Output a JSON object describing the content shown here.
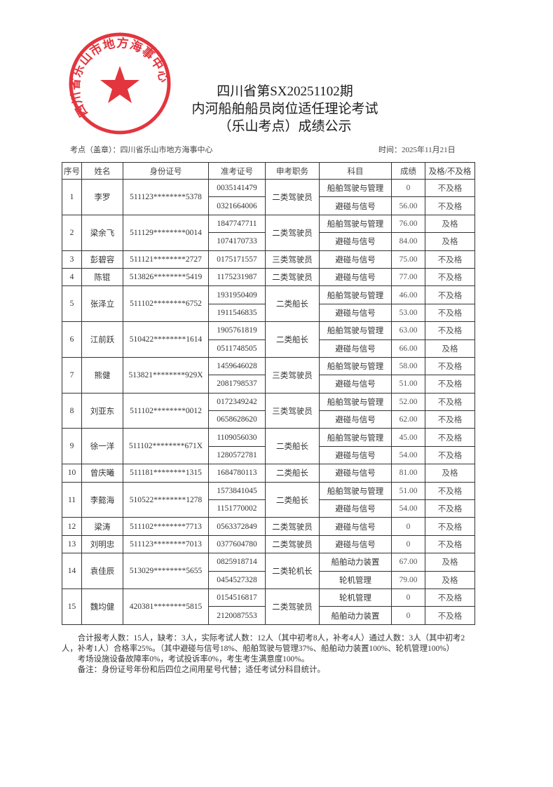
{
  "document": {
    "title_line1": "四川省第SX20251102期",
    "title_line2": "内河船舶船员岗位适任理论考试",
    "title_line3": "（乐山考点）成绩公示",
    "exam_site": "考点（盖章）：四川省乐山市地方海事中心",
    "date": "时间：2025年11月21日"
  },
  "stamp": {
    "text": "四川省乐山市地方海事中心",
    "color": "#e0202a",
    "icon": "star-icon"
  },
  "table": {
    "headers": [
      "序号",
      "姓名",
      "身份证号",
      "准考证号",
      "申考职务",
      "科目",
      "成绩",
      "及格/不及格"
    ],
    "rows": [
      {
        "no": "1",
        "name": "李罗",
        "id": "511123********5378",
        "position": "二类驾驶员",
        "exams": [
          {
            "ticket": "0035141479",
            "subject": "船舶驾驶与管理",
            "score": "0",
            "result": "不及格"
          },
          {
            "ticket": "0321664006",
            "subject": "避碰与信号",
            "score": "56.00",
            "result": "不及格"
          }
        ]
      },
      {
        "no": "2",
        "name": "梁余飞",
        "id": "511129********0014",
        "position": "二类驾驶员",
        "exams": [
          {
            "ticket": "1847747711",
            "subject": "船舶驾驶与管理",
            "score": "76.00",
            "result": "及格"
          },
          {
            "ticket": "1074170733",
            "subject": "避碰与信号",
            "score": "84.00",
            "result": "及格"
          }
        ]
      },
      {
        "no": "3",
        "name": "彭碧容",
        "id": "511121********2727",
        "position": "三类驾驶员",
        "exams": [
          {
            "ticket": "0175171557",
            "subject": "避碰与信号",
            "score": "75.00",
            "result": "不及格"
          }
        ]
      },
      {
        "no": "4",
        "name": "陈锟",
        "id": "513826********5419",
        "position": "二类驾驶员",
        "exams": [
          {
            "ticket": "1175231987",
            "subject": "避碰与信号",
            "score": "77.00",
            "result": "不及格"
          }
        ]
      },
      {
        "no": "5",
        "name": "张泽立",
        "id": "511102********6752",
        "position": "二类船长",
        "exams": [
          {
            "ticket": "1931950409",
            "subject": "船舶驾驶与管理",
            "score": "46.00",
            "result": "不及格"
          },
          {
            "ticket": "1911546835",
            "subject": "避碰与信号",
            "score": "53.00",
            "result": "不及格"
          }
        ]
      },
      {
        "no": "6",
        "name": "江前跃",
        "id": "510422********1614",
        "position": "二类船长",
        "exams": [
          {
            "ticket": "1905761819",
            "subject": "船舶驾驶与管理",
            "score": "63.00",
            "result": "不及格"
          },
          {
            "ticket": "0511748505",
            "subject": "避碰与信号",
            "score": "66.00",
            "result": "及格"
          }
        ]
      },
      {
        "no": "7",
        "name": "熊健",
        "id": "513821********929X",
        "position": "三类驾驶员",
        "exams": [
          {
            "ticket": "1459646028",
            "subject": "船舶驾驶与管理",
            "score": "58.00",
            "result": "不及格"
          },
          {
            "ticket": "2081798537",
            "subject": "避碰与信号",
            "score": "51.00",
            "result": "不及格"
          }
        ]
      },
      {
        "no": "8",
        "name": "刘亚东",
        "id": "511102********0012",
        "position": "三类驾驶员",
        "exams": [
          {
            "ticket": "0172349242",
            "subject": "船舶驾驶与管理",
            "score": "52.00",
            "result": "不及格"
          },
          {
            "ticket": "0658628620",
            "subject": "避碰与信号",
            "score": "62.00",
            "result": "不及格"
          }
        ]
      },
      {
        "no": "9",
        "name": "徐一洋",
        "id": "511102********671X",
        "position": "二类船长",
        "exams": [
          {
            "ticket": "1109056030",
            "subject": "船舶驾驶与管理",
            "score": "45.00",
            "result": "不及格"
          },
          {
            "ticket": "1280572781",
            "subject": "避碰与信号",
            "score": "54.00",
            "result": "不及格"
          }
        ]
      },
      {
        "no": "10",
        "name": "曾庆曦",
        "id": "511181********1315",
        "position": "二类船长",
        "exams": [
          {
            "ticket": "1684780113",
            "subject": "避碰与信号",
            "score": "81.00",
            "result": "及格"
          }
        ]
      },
      {
        "no": "11",
        "name": "李懿海",
        "id": "510522********1278",
        "position": "二类船长",
        "exams": [
          {
            "ticket": "1573841045",
            "subject": "船舶驾驶与管理",
            "score": "51.00",
            "result": "不及格"
          },
          {
            "ticket": "1151770002",
            "subject": "避碰与信号",
            "score": "54.00",
            "result": "不及格"
          }
        ]
      },
      {
        "no": "12",
        "name": "梁涛",
        "id": "511102********7713",
        "position": "二类驾驶员",
        "exams": [
          {
            "ticket": "0563372849",
            "subject": "避碰与信号",
            "score": "0",
            "result": "不及格"
          }
        ]
      },
      {
        "no": "13",
        "name": "刘明忠",
        "id": "511123********7013",
        "position": "二类驾驶员",
        "exams": [
          {
            "ticket": "0377604780",
            "subject": "避碰与信号",
            "score": "0",
            "result": "不及格"
          }
        ]
      },
      {
        "no": "14",
        "name": "袁佳辰",
        "id": "513029********5655",
        "position": "二类轮机长",
        "exams": [
          {
            "ticket": "0825918714",
            "subject": "船舶动力装置",
            "score": "67.00",
            "result": "及格"
          },
          {
            "ticket": "0454527328",
            "subject": "轮机管理",
            "score": "79.00",
            "result": "及格"
          }
        ]
      },
      {
        "no": "15",
        "name": "魏均健",
        "id": "420381********5815",
        "position": "二类驾驶员",
        "exams": [
          {
            "ticket": "0154516817",
            "subject": "轮机管理",
            "score": "0",
            "result": "不及格"
          },
          {
            "ticket": "2120087553",
            "subject": "船舶动力装置",
            "score": "0",
            "result": "不及格"
          }
        ]
      }
    ]
  },
  "notes": {
    "summary": "合计报考人数：15人，缺考：3人，实际考试人数：12人（其中初考8人，补考4人）通过人数：3人（其中初考2人，补考1人）合格率25%。（其中避碰与信号18%、船舶驾驶与管理37%、船舶动力装置100%、轮机管理100%）",
    "facilities": "考场设施设备故障率0%，考试投诉率0%，考生考生满意度100%。",
    "remark": "备注：身份证号年份和后四位之间用星号代替；适任考试分科目统计。"
  }
}
